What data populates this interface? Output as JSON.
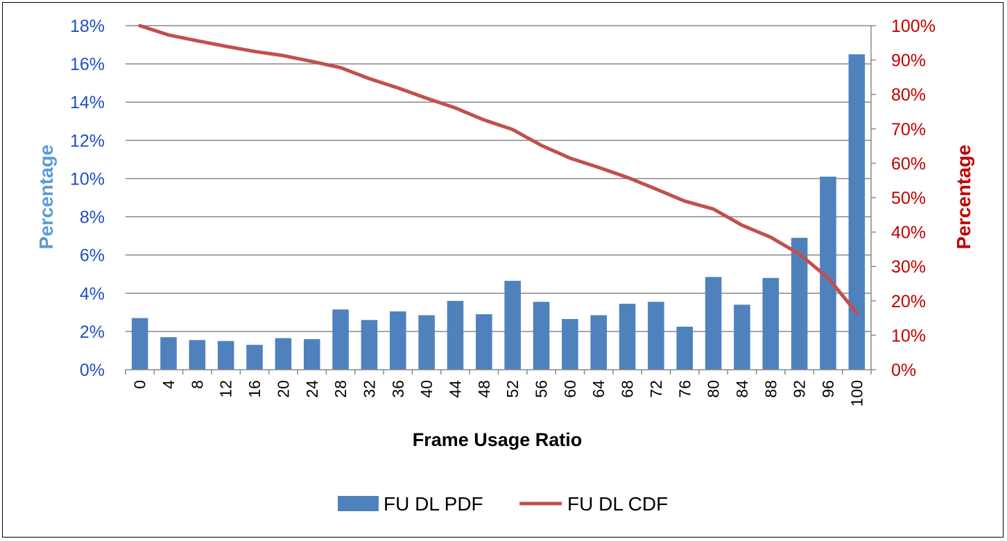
{
  "chart_data": {
    "type": "bar+line",
    "categories": [
      "0",
      "4",
      "8",
      "12",
      "16",
      "20",
      "24",
      "28",
      "32",
      "36",
      "40",
      "44",
      "48",
      "52",
      "56",
      "60",
      "64",
      "68",
      "72",
      "76",
      "80",
      "84",
      "88",
      "92",
      "96",
      "100"
    ],
    "series": [
      {
        "name": "FU DL PDF",
        "type": "bar",
        "axis": "left",
        "color": "#4F81BD",
        "values": [
          2.7,
          1.7,
          1.55,
          1.5,
          1.3,
          1.65,
          1.6,
          3.15,
          2.6,
          3.05,
          2.85,
          3.6,
          2.9,
          4.65,
          3.55,
          2.65,
          2.85,
          3.45,
          3.55,
          2.25,
          4.85,
          3.4,
          4.8,
          6.9,
          10.1,
          16.5
        ]
      },
      {
        "name": "FU DL CDF",
        "type": "line",
        "axis": "right",
        "color": "#C0504D",
        "values": [
          100,
          97.3,
          95.6,
          94.0,
          92.5,
          91.3,
          89.6,
          87.8,
          84.6,
          81.9,
          78.9,
          76.1,
          72.6,
          69.8,
          65.2,
          61.5,
          58.8,
          55.9,
          52.5,
          49.0,
          46.7,
          42.0,
          38.5,
          33.6,
          26.7,
          16.5
        ]
      }
    ],
    "title": "",
    "xlabel": "Frame Usage Ratio",
    "ylabel_left": "Percentage",
    "ylabel_right": "Percentage",
    "ylim_left": [
      0,
      18
    ],
    "ylim_right": [
      0,
      100
    ],
    "yticks_left": [
      "0%",
      "2%",
      "4%",
      "6%",
      "8%",
      "10%",
      "12%",
      "14%",
      "16%",
      "18%"
    ],
    "yticks_right": [
      "0%",
      "10%",
      "20%",
      "30%",
      "40%",
      "50%",
      "60%",
      "70%",
      "80%",
      "90%",
      "100%"
    ],
    "grid": true,
    "legend_position": "bottom",
    "colors": {
      "left_axis_text": "#1F4FBF",
      "left_axis_title": "#5B9BD5",
      "right_axis_text": "#C00000",
      "gridline": "#878787"
    }
  }
}
